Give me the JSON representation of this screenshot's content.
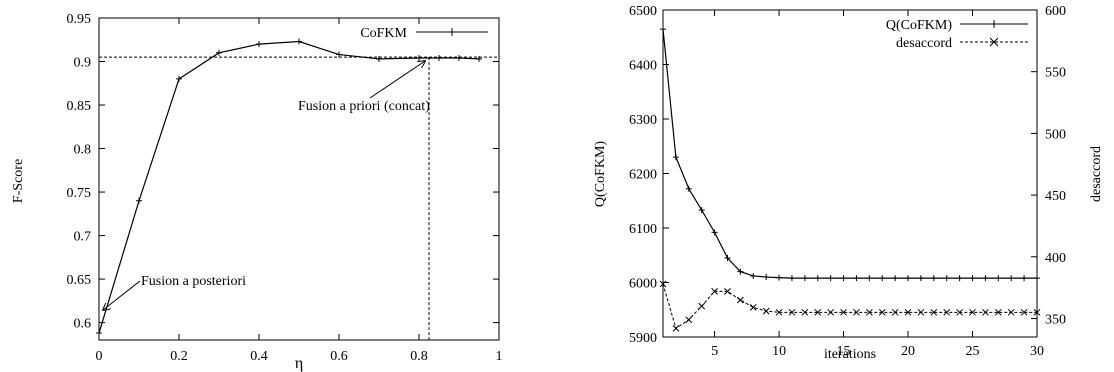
{
  "chart_data": [
    {
      "type": "line",
      "xlabel": "η",
      "ylabel": "F-Score",
      "xlim": [
        0,
        1
      ],
      "ylim": [
        0.58,
        0.95
      ],
      "xticks": [
        0,
        0.2,
        0.4,
        0.6,
        0.8,
        1
      ],
      "xtick_labels": [
        "0",
        "0.2",
        "0.4",
        "0.6",
        "0.8",
        "1"
      ],
      "yticks": [
        0.6,
        0.65,
        0.7,
        0.75,
        0.8,
        0.85,
        0.9,
        0.95
      ],
      "ytick_labels": [
        "0.6",
        "0.65",
        "0.7",
        "0.75",
        "0.8",
        "0.85",
        "0.9",
        "0.95"
      ],
      "legend_position": "top-right",
      "grid": false,
      "series": [
        {
          "name": "CoFKM",
          "x": [
            0,
            0.1,
            0.2,
            0.3,
            0.4,
            0.5,
            0.6,
            0.7,
            0.8,
            0.85,
            0.9,
            0.95
          ],
          "y": [
            0.588,
            0.74,
            0.88,
            0.91,
            0.92,
            0.923,
            0.908,
            0.903,
            0.904,
            0.904,
            0.904,
            0.903
          ]
        }
      ],
      "reference_lines": [
        {
          "orientation": "horizontal",
          "value": 0.905
        },
        {
          "orientation": "vertical",
          "value": 0.825
        }
      ],
      "annotations": [
        {
          "text": "Fusion a priori (concat)",
          "x": 0.825,
          "y": 0.905
        },
        {
          "text": "Fusion a posteriori",
          "x": 0,
          "y": 0.588
        }
      ]
    },
    {
      "type": "line",
      "xlabel": "iterations",
      "ylabel": "Q(CoFKM)",
      "y2label": "desaccord",
      "xlim": [
        1,
        30
      ],
      "ylim": [
        5900,
        6500
      ],
      "y2lim": [
        335,
        600
      ],
      "xticks": [
        5,
        10,
        15,
        20,
        25,
        30
      ],
      "xtick_labels": [
        "5",
        "10",
        "15",
        "20",
        "25",
        "30"
      ],
      "yticks": [
        5900,
        6000,
        6100,
        6200,
        6300,
        6400,
        6500
      ],
      "ytick_labels": [
        "5900",
        "6000",
        "6100",
        "6200",
        "6300",
        "6400",
        "6500"
      ],
      "y2ticks": [
        350,
        400,
        450,
        500,
        550,
        600
      ],
      "y2tick_labels": [
        "350",
        "400",
        "450",
        "500",
        "550",
        "600"
      ],
      "legend_position": "top-right",
      "grid": false,
      "series": [
        {
          "name": "Q(CoFKM)",
          "axis": "left",
          "x": [
            1,
            2,
            3,
            4,
            5,
            6,
            7,
            8,
            9,
            10,
            11,
            12,
            13,
            14,
            15,
            16,
            17,
            18,
            19,
            20,
            21,
            22,
            23,
            24,
            25,
            26,
            27,
            28,
            29,
            30
          ],
          "y": [
            6465,
            6230,
            6172,
            6133,
            6092,
            6045,
            6020,
            6012,
            6010,
            6009,
            6008,
            6008,
            6008,
            6008,
            6008,
            6008,
            6008,
            6008,
            6008,
            6008,
            6008,
            6008,
            6008,
            6008,
            6008,
            6008,
            6008,
            6008,
            6008,
            6008
          ]
        },
        {
          "name": "desaccord",
          "axis": "right",
          "x": [
            1,
            2,
            3,
            4,
            5,
            6,
            7,
            8,
            9,
            10,
            11,
            12,
            13,
            14,
            15,
            16,
            17,
            18,
            19,
            20,
            21,
            22,
            23,
            24,
            25,
            26,
            27,
            28,
            29,
            30
          ],
          "y": [
            378,
            342,
            349,
            360,
            372,
            372,
            365,
            359,
            356,
            355,
            355,
            355,
            355,
            355,
            355,
            355,
            355,
            355,
            355,
            355,
            355,
            355,
            355,
            355,
            355,
            355,
            355,
            355,
            355,
            355
          ]
        }
      ]
    }
  ]
}
